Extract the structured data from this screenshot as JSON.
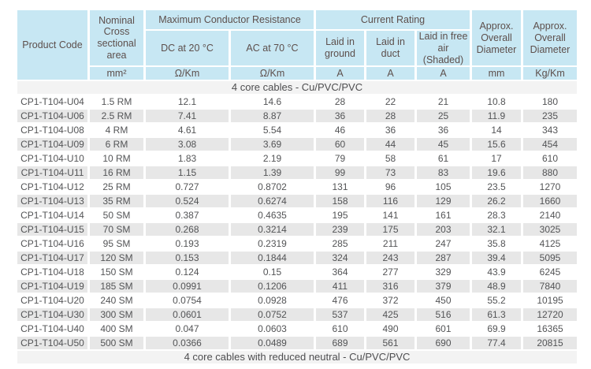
{
  "table": {
    "header": {
      "product_code": "Product Code",
      "nominal_area": "Nominal Cross sectional area",
      "max_conductor_resistance": "Maximum Conductor Resistance",
      "current_rating": "Current Rating",
      "dc_20": "DC at 20 °C",
      "ac_70": "AC at 70 °C",
      "laid_in_ground": "Laid in ground",
      "laid_in_duct": "Laid in duct",
      "laid_in_free_air": "Laid in free air (Shaded)",
      "approx_overall_diameter_mm": "Approx. Overall Diameter",
      "approx_overall_diameter_kg": "Approx. Overall Diameter"
    },
    "units": [
      "mm²",
      "Ω/Km",
      "Ω/Km",
      "A",
      "A",
      "A",
      "mm",
      "Kg/Km"
    ],
    "section1_title": "4 core cables - Cu/PVC/PVC",
    "section2_title": "4 core cables with reduced neutral - Cu/PVC/PVC",
    "rows": [
      [
        "CP1-T104-U04",
        "1.5 RM",
        "12.1",
        "14.6",
        "28",
        "22",
        "21",
        "10.8",
        "180"
      ],
      [
        "CP1-T104-U06",
        "2.5 RM",
        "7.41",
        "8.87",
        "36",
        "28",
        "25",
        "11.9",
        "235"
      ],
      [
        "CP1-T104-U08",
        "4 RM",
        "4.61",
        "5.54",
        "46",
        "36",
        "36",
        "14",
        "343"
      ],
      [
        "CP1-T104-U09",
        "6 RM",
        "3.08",
        "3.69",
        "60",
        "44",
        "45",
        "15.6",
        "454"
      ],
      [
        "CP1-T104-U10",
        "10 RM",
        "1.83",
        "2.19",
        "79",
        "58",
        "61",
        "17",
        "610"
      ],
      [
        "CP1-T104-U11",
        "16 RM",
        "1.15",
        "1.39",
        "99",
        "73",
        "83",
        "19.6",
        "880"
      ],
      [
        "CP1-T104-U12",
        "25 RM",
        "0.727",
        "0.8702",
        "131",
        "96",
        "105",
        "23.5",
        "1270"
      ],
      [
        "CP1-T104-U13",
        "35 RM",
        "0.524",
        "0.6274",
        "158",
        "116",
        "129",
        "26.2",
        "1660"
      ],
      [
        "CP1-T104-U14",
        "50 SM",
        "0.387",
        "0.4635",
        "195",
        "141",
        "161",
        "28.3",
        "2140"
      ],
      [
        "CP1-T104-U15",
        "70 SM",
        "0.268",
        "0.3214",
        "239",
        "175",
        "203",
        "32.1",
        "3025"
      ],
      [
        "CP1-T104-U16",
        "95 SM",
        "0.193",
        "0.2319",
        "285",
        "211",
        "247",
        "35.8",
        "4125"
      ],
      [
        "CP1-T104-U17",
        "120 SM",
        "0.153",
        "0.1844",
        "324",
        "243",
        "287",
        "39.4",
        "5095"
      ],
      [
        "CP1-T104-U18",
        "150 SM",
        "0.124",
        "0.15",
        "364",
        "277",
        "329",
        "43.9",
        "6245"
      ],
      [
        "CP1-T104-U19",
        "185 SM",
        "0.0991",
        "0.1206",
        "411",
        "316",
        "379",
        "48.9",
        "7840"
      ],
      [
        "CP1-T104-U20",
        "240 SM",
        "0.0754",
        "0.0928",
        "476",
        "372",
        "450",
        "55.2",
        "10195"
      ],
      [
        "CP1-T104-U30",
        "300 SM",
        "0.0601",
        "0.0752",
        "537",
        "425",
        "516",
        "61.3",
        "12720"
      ],
      [
        "CP1-T104-U40",
        "400 SM",
        "0.047",
        "0.0603",
        "610",
        "490",
        "601",
        "69.9",
        "16365"
      ],
      [
        "CP1-T104-U50",
        "500 SM",
        "0.0366",
        "0.0489",
        "689",
        "561",
        "690",
        "77.4",
        "20815"
      ]
    ],
    "colors": {
      "header_bg": "#c7e7f3",
      "row_alt_bg": "#e7e7e7",
      "section_bg": "#f3f3f3",
      "header_text": "#5d4f4c",
      "body_text": "#535456"
    }
  }
}
